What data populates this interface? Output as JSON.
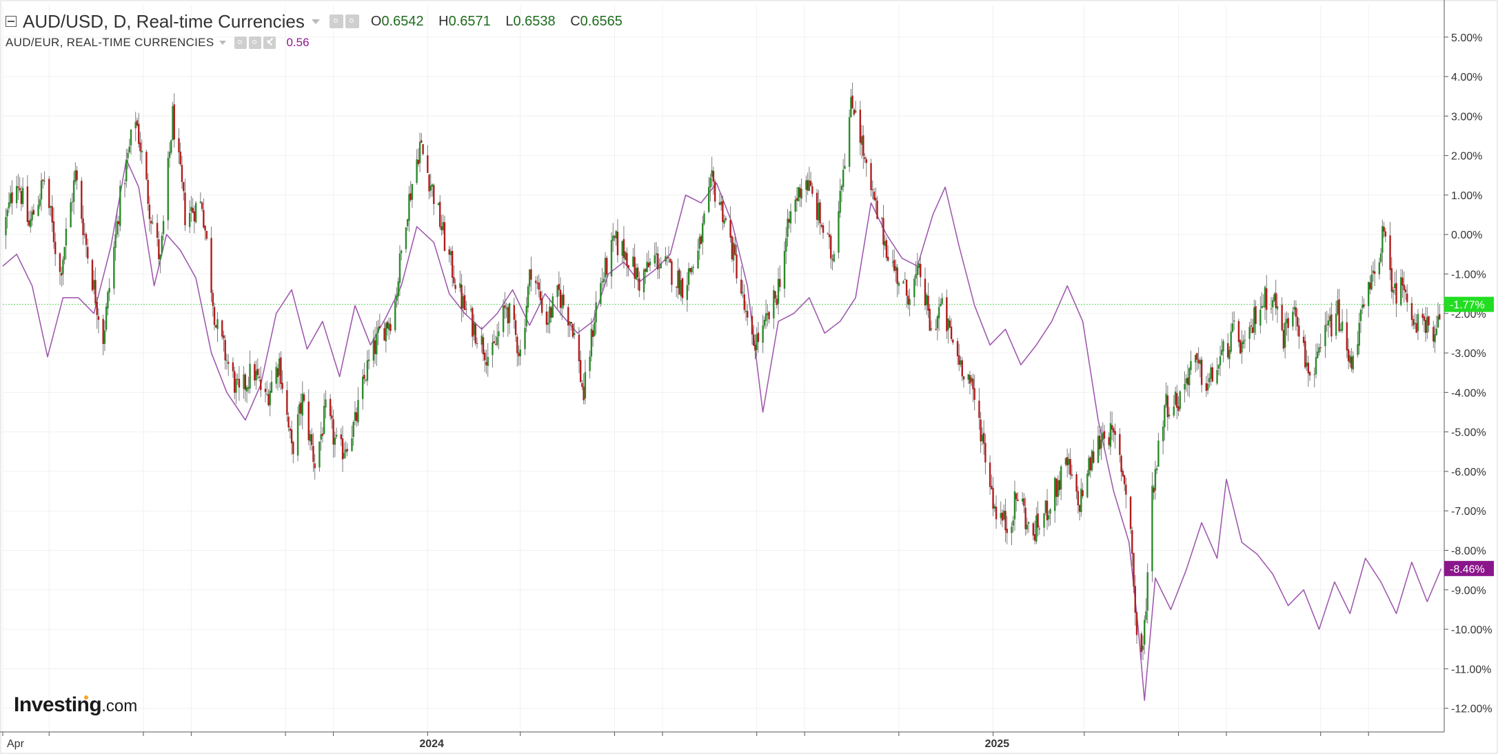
{
  "legend": {
    "main_symbol": "AUD/USD, D, Real-time Currencies",
    "open_label": "O",
    "open": "0.6542",
    "high_label": "H",
    "high": "0.6571",
    "low_label": "L",
    "low": "0.6538",
    "close_label": "C",
    "close": "0.6565",
    "sub_symbol": "AUD/EUR, REAL-TIME CURRENCIES",
    "sub_value": "0.56",
    "icons": [
      "eye-icon",
      "settings-icon",
      "close-icon"
    ]
  },
  "branding": {
    "logo_bold": "Investing",
    "logo_suffix": ".com"
  },
  "colors": {
    "up": "#2a8a2a",
    "down": "#b01c1c",
    "wick": "#6b6b6b",
    "compare_line": "#a05aaf",
    "last_price_line": "#5cd65c",
    "badge_main": "#22dd22",
    "badge_compare": "#8b168b",
    "grid": "#f0f0f0",
    "axis": "#555555"
  },
  "chart_data": {
    "type": "candlestick_with_line",
    "y_unit": "%",
    "ylim": [
      -12.6,
      5.8
    ],
    "y_ticks": [
      "5.00%",
      "4.00%",
      "3.00%",
      "2.00%",
      "1.00%",
      "0.00%",
      "-1.00%",
      "-2.00%",
      "-3.00%",
      "-4.00%",
      "-5.00%",
      "-6.00%",
      "-7.00%",
      "-8.00%",
      "-9.00%",
      "-10.00%",
      "-11.00%",
      "-12.00%"
    ],
    "x_range": [
      "2023-04-01",
      "2025-10-20"
    ],
    "x_ticks": [
      {
        "date": "2023-04-01",
        "label": "Apr"
      },
      {
        "date": "2023-05-01",
        "label": ""
      },
      {
        "date": "2023-07-01",
        "label": ""
      },
      {
        "date": "2023-08-01",
        "label": ""
      },
      {
        "date": "2023-10-01",
        "label": ""
      },
      {
        "date": "2023-11-01",
        "label": ""
      },
      {
        "date": "2024-01-01",
        "label": "2024"
      },
      {
        "date": "2024-03-01",
        "label": ""
      },
      {
        "date": "2024-05-01",
        "label": ""
      },
      {
        "date": "2024-06-01",
        "label": ""
      },
      {
        "date": "2024-08-01",
        "label": ""
      },
      {
        "date": "2024-09-01",
        "label": ""
      },
      {
        "date": "2024-11-01",
        "label": ""
      },
      {
        "date": "2025-01-01",
        "label": "2025"
      },
      {
        "date": "2025-03-01",
        "label": ""
      },
      {
        "date": "2025-05-01",
        "label": ""
      },
      {
        "date": "2025-06-01",
        "label": ""
      },
      {
        "date": "2025-08-01",
        "label": ""
      },
      {
        "date": "2025-09-01",
        "label": ""
      }
    ],
    "series": [
      {
        "name": "AUD/USD",
        "style": "candlestick",
        "last_value_label": "-1.77%",
        "close_path": [
          [
            "2023-04-01",
            0.0
          ],
          [
            "2023-04-10",
            1.5
          ],
          [
            "2023-04-18",
            0.2
          ],
          [
            "2023-04-28",
            1.4
          ],
          [
            "2023-05-08",
            -1.0
          ],
          [
            "2023-05-18",
            1.5
          ],
          [
            "2023-05-26",
            -0.5
          ],
          [
            "2023-06-05",
            -2.6
          ],
          [
            "2023-06-16",
            0.9
          ],
          [
            "2023-06-26",
            3.0
          ],
          [
            "2023-07-05",
            0.7
          ],
          [
            "2023-07-12",
            -0.7
          ],
          [
            "2023-07-20",
            3.0
          ],
          [
            "2023-07-28",
            0.5
          ],
          [
            "2023-08-08",
            0.8
          ],
          [
            "2023-08-17",
            -2.3
          ],
          [
            "2023-08-25",
            -3.3
          ],
          [
            "2023-09-01",
            -4.1
          ],
          [
            "2023-09-10",
            -3.4
          ],
          [
            "2023-09-18",
            -4.2
          ],
          [
            "2023-09-27",
            -3.2
          ],
          [
            "2023-10-05",
            -5.5
          ],
          [
            "2023-10-12",
            -4.2
          ],
          [
            "2023-10-20",
            -5.8
          ],
          [
            "2023-10-27",
            -4.5
          ],
          [
            "2023-11-05",
            -5.6
          ],
          [
            "2023-11-15",
            -4.8
          ],
          [
            "2023-11-22",
            -3.5
          ],
          [
            "2023-12-01",
            -2.5
          ],
          [
            "2023-12-10",
            -2.0
          ],
          [
            "2023-12-18",
            0.5
          ],
          [
            "2023-12-27",
            2.3
          ],
          [
            "2024-01-05",
            1.0
          ],
          [
            "2024-01-14",
            -0.5
          ],
          [
            "2024-01-24",
            -1.8
          ],
          [
            "2024-02-02",
            -2.5
          ],
          [
            "2024-02-11",
            -3.2
          ],
          [
            "2024-02-21",
            -1.8
          ],
          [
            "2024-03-01",
            -3.0
          ],
          [
            "2024-03-08",
            -0.8
          ],
          [
            "2024-03-18",
            -2.2
          ],
          [
            "2024-03-26",
            -1.5
          ],
          [
            "2024-04-04",
            -2.3
          ],
          [
            "2024-04-11",
            -4.1
          ],
          [
            "2024-04-20",
            -1.5
          ],
          [
            "2024-05-01",
            -0.2
          ],
          [
            "2024-05-09",
            -0.5
          ],
          [
            "2024-05-17",
            -1.2
          ],
          [
            "2024-05-27",
            -0.6
          ],
          [
            "2024-06-06",
            -0.9
          ],
          [
            "2024-06-14",
            -1.3
          ],
          [
            "2024-06-24",
            -0.5
          ],
          [
            "2024-07-03",
            1.3
          ],
          [
            "2024-07-10",
            0.6
          ],
          [
            "2024-07-20",
            -1.0
          ],
          [
            "2024-07-28",
            -2.8
          ],
          [
            "2024-08-05",
            -2.5
          ],
          [
            "2024-08-14",
            -1.5
          ],
          [
            "2024-08-23",
            0.5
          ],
          [
            "2024-09-01",
            1.5
          ],
          [
            "2024-09-09",
            0.6
          ],
          [
            "2024-09-19",
            -0.6
          ],
          [
            "2024-09-24",
            1.2
          ],
          [
            "2024-10-01",
            3.2
          ],
          [
            "2024-10-04",
            3.3
          ],
          [
            "2024-10-12",
            1.3
          ],
          [
            "2024-10-21",
            0.1
          ],
          [
            "2024-10-28",
            -0.8
          ],
          [
            "2024-11-06",
            -1.5
          ],
          [
            "2024-11-15",
            -1.0
          ],
          [
            "2024-11-22",
            -2.5
          ],
          [
            "2024-11-28",
            -1.8
          ],
          [
            "2024-12-08",
            -3.0
          ],
          [
            "2024-12-16",
            -3.6
          ],
          [
            "2024-12-24",
            -4.9
          ],
          [
            "2025-01-02",
            -6.9
          ],
          [
            "2025-01-10",
            -7.4
          ],
          [
            "2025-01-18",
            -6.5
          ],
          [
            "2025-01-25",
            -7.7
          ],
          [
            "2025-02-02",
            -7.2
          ],
          [
            "2025-02-10",
            -6.5
          ],
          [
            "2025-02-18",
            -5.8
          ],
          [
            "2025-02-25",
            -6.9
          ],
          [
            "2025-03-05",
            -5.8
          ],
          [
            "2025-03-14",
            -4.9
          ],
          [
            "2025-03-22",
            -5.3
          ],
          [
            "2025-03-30",
            -6.8
          ],
          [
            "2025-04-04",
            -10.2
          ],
          [
            "2025-04-08",
            -10.6
          ],
          [
            "2025-04-14",
            -6.5
          ],
          [
            "2025-04-22",
            -4.3
          ],
          [
            "2025-05-01",
            -4.2
          ],
          [
            "2025-05-10",
            -3.2
          ],
          [
            "2025-05-20",
            -3.8
          ],
          [
            "2025-05-28",
            -3.2
          ],
          [
            "2025-06-06",
            -2.5
          ],
          [
            "2025-06-14",
            -3.0
          ],
          [
            "2025-06-21",
            -1.8
          ],
          [
            "2025-07-01",
            -1.5
          ],
          [
            "2025-07-08",
            -2.6
          ],
          [
            "2025-07-15",
            -1.6
          ],
          [
            "2025-07-22",
            -3.2
          ],
          [
            "2025-07-28",
            -3.6
          ],
          [
            "2025-08-04",
            -2.5
          ],
          [
            "2025-08-12",
            -2.0
          ],
          [
            "2025-08-20",
            -3.3
          ],
          [
            "2025-08-28",
            -2.0
          ],
          [
            "2025-09-05",
            -1.0
          ],
          [
            "2025-09-10",
            0.0
          ],
          [
            "2025-09-18",
            -1.5
          ],
          [
            "2025-09-25",
            -1.2
          ],
          [
            "2025-10-01",
            -2.5
          ],
          [
            "2025-10-07",
            -2.0
          ],
          [
            "2025-10-13",
            -3.0
          ],
          [
            "2025-10-18",
            -1.77
          ]
        ]
      },
      {
        "name": "AUD/EUR",
        "style": "line",
        "last_value_label": "-8.46%",
        "values": [
          [
            "2023-04-01",
            -0.8
          ],
          [
            "2023-04-10",
            -0.5
          ],
          [
            "2023-04-20",
            -1.3
          ],
          [
            "2023-04-30",
            -3.1
          ],
          [
            "2023-05-10",
            -1.6
          ],
          [
            "2023-05-20",
            -1.6
          ],
          [
            "2023-05-30",
            -2.0
          ],
          [
            "2023-06-10",
            -0.3
          ],
          [
            "2023-06-20",
            1.9
          ],
          [
            "2023-06-28",
            1.2
          ],
          [
            "2023-07-08",
            -1.3
          ],
          [
            "2023-07-16",
            0.0
          ],
          [
            "2023-07-25",
            -0.4
          ],
          [
            "2023-08-04",
            -1.1
          ],
          [
            "2023-08-14",
            -3.0
          ],
          [
            "2023-08-24",
            -4.0
          ],
          [
            "2023-09-05",
            -4.7
          ],
          [
            "2023-09-15",
            -3.8
          ],
          [
            "2023-09-25",
            -2.0
          ],
          [
            "2023-10-05",
            -1.4
          ],
          [
            "2023-10-15",
            -2.9
          ],
          [
            "2023-10-25",
            -2.2
          ],
          [
            "2023-11-05",
            -3.6
          ],
          [
            "2023-11-15",
            -1.8
          ],
          [
            "2023-11-25",
            -2.8
          ],
          [
            "2023-12-05",
            -2.1
          ],
          [
            "2023-12-15",
            -1.3
          ],
          [
            "2023-12-25",
            0.2
          ],
          [
            "2024-01-05",
            -0.2
          ],
          [
            "2024-01-15",
            -1.5
          ],
          [
            "2024-01-25",
            -2.0
          ],
          [
            "2024-02-05",
            -2.4
          ],
          [
            "2024-02-15",
            -2.0
          ],
          [
            "2024-02-25",
            -1.4
          ],
          [
            "2024-03-07",
            -2.3
          ],
          [
            "2024-03-17",
            -1.5
          ],
          [
            "2024-03-27",
            -2.0
          ],
          [
            "2024-04-07",
            -2.5
          ],
          [
            "2024-04-17",
            -2.2
          ],
          [
            "2024-04-27",
            -1.0
          ],
          [
            "2024-05-07",
            -0.7
          ],
          [
            "2024-05-17",
            -1.2
          ],
          [
            "2024-05-27",
            -0.9
          ],
          [
            "2024-06-06",
            -0.5
          ],
          [
            "2024-06-16",
            1.0
          ],
          [
            "2024-06-26",
            0.8
          ],
          [
            "2024-07-06",
            1.3
          ],
          [
            "2024-07-16",
            0.3
          ],
          [
            "2024-07-26",
            -1.3
          ],
          [
            "2024-08-05",
            -4.5
          ],
          [
            "2024-08-15",
            -2.2
          ],
          [
            "2024-08-25",
            -2.0
          ],
          [
            "2024-09-04",
            -1.6
          ],
          [
            "2024-09-14",
            -2.5
          ],
          [
            "2024-09-24",
            -2.2
          ],
          [
            "2024-10-04",
            -1.6
          ],
          [
            "2024-10-14",
            0.8
          ],
          [
            "2024-10-24",
            0.0
          ],
          [
            "2024-11-03",
            -0.6
          ],
          [
            "2024-11-13",
            -0.8
          ],
          [
            "2024-11-23",
            0.5
          ],
          [
            "2024-12-01",
            1.2
          ],
          [
            "2024-12-10",
            -0.3
          ],
          [
            "2024-12-20",
            -1.8
          ],
          [
            "2024-12-30",
            -2.8
          ],
          [
            "2025-01-09",
            -2.4
          ],
          [
            "2025-01-19",
            -3.3
          ],
          [
            "2025-01-29",
            -2.8
          ],
          [
            "2025-02-08",
            -2.2
          ],
          [
            "2025-02-18",
            -1.3
          ],
          [
            "2025-02-28",
            -2.2
          ],
          [
            "2025-03-10",
            -4.7
          ],
          [
            "2025-03-20",
            -6.5
          ],
          [
            "2025-03-30",
            -7.8
          ],
          [
            "2025-04-05",
            -10.0
          ],
          [
            "2025-04-09",
            -11.8
          ],
          [
            "2025-04-16",
            -8.7
          ],
          [
            "2025-04-26",
            -9.5
          ],
          [
            "2025-05-06",
            -8.5
          ],
          [
            "2025-05-16",
            -7.3
          ],
          [
            "2025-05-26",
            -8.2
          ],
          [
            "2025-06-01",
            -6.2
          ],
          [
            "2025-06-11",
            -7.8
          ],
          [
            "2025-06-21",
            -8.1
          ],
          [
            "2025-07-01",
            -8.6
          ],
          [
            "2025-07-11",
            -9.4
          ],
          [
            "2025-07-21",
            -9.0
          ],
          [
            "2025-07-31",
            -10.0
          ],
          [
            "2025-08-10",
            -8.8
          ],
          [
            "2025-08-20",
            -9.6
          ],
          [
            "2025-08-30",
            -8.2
          ],
          [
            "2025-09-09",
            -8.8
          ],
          [
            "2025-09-19",
            -9.6
          ],
          [
            "2025-09-29",
            -8.3
          ],
          [
            "2025-10-09",
            -9.3
          ],
          [
            "2025-10-18",
            -8.46
          ]
        ]
      }
    ]
  }
}
